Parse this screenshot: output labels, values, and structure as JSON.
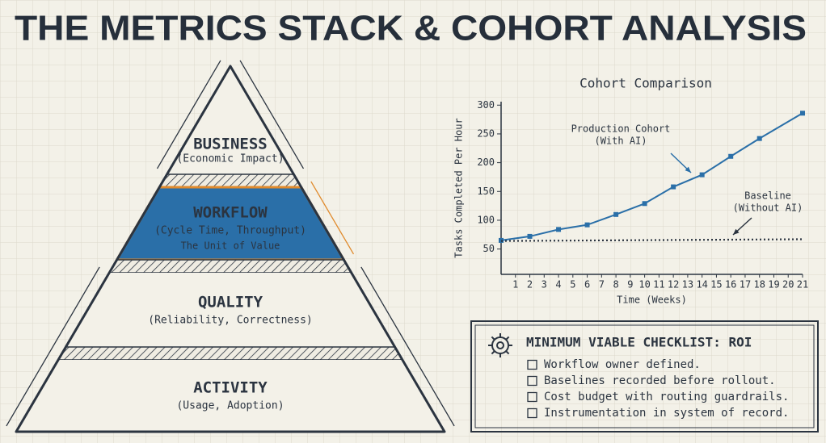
{
  "header": {
    "title": "THE METRICS STACK & COHORT ANALYSIS"
  },
  "pyramid": {
    "layers": [
      {
        "name": "BUSINESS",
        "subtitle": "(Economic Impact)"
      },
      {
        "name": "WORKFLOW",
        "subtitle": "(Cycle Time, Throughput)",
        "note": "The Unit of Value"
      },
      {
        "name": "QUALITY",
        "subtitle": "(Reliability, Correctness)"
      },
      {
        "name": "ACTIVITY",
        "subtitle": "(Usage, Adoption)"
      }
    ]
  },
  "chart_data": {
    "type": "line",
    "title": "Cohort Comparison",
    "x_label": "Time (Weeks)",
    "y_label": "Tasks Completed Per Hour",
    "xlim": [
      0,
      21
    ],
    "xticks": [
      1,
      2,
      3,
      4,
      5,
      6,
      7,
      8,
      9,
      10,
      11,
      12,
      13,
      14,
      15,
      16,
      17,
      18,
      19,
      20,
      21
    ],
    "ylim": [
      6,
      306
    ],
    "yticks": [
      50,
      100,
      150,
      200,
      250,
      300
    ],
    "series": [
      {
        "color": "#2a6fa8",
        "style": "solid",
        "markers": true,
        "x": [
          0,
          2,
          4,
          6,
          8,
          10,
          12,
          14,
          16,
          18,
          21
        ],
        "values": [
          65,
          72,
          84,
          92,
          110,
          129,
          158,
          179,
          211,
          242,
          286
        ]
      },
      {
        "color": "#2b3440",
        "style": "dotted",
        "markers": false,
        "x": [
          0,
          21
        ],
        "values": [
          64,
          67
        ]
      }
    ],
    "annotations": [
      {
        "lines": [
          "Production Cohort",
          "(With AI)"
        ],
        "color": "#2a6fa8"
      },
      {
        "lines": [
          "Baseline",
          "(Without AI)"
        ],
        "color": "#2b3440"
      }
    ]
  },
  "checklist": {
    "title": "MINIMUM VIABLE CHECKLIST: ROI",
    "items": [
      "Workflow owner defined.",
      "Baselines recorded before rollout.",
      "Cost budget with routing guardrails.",
      "Instrumentation in system of record."
    ]
  }
}
